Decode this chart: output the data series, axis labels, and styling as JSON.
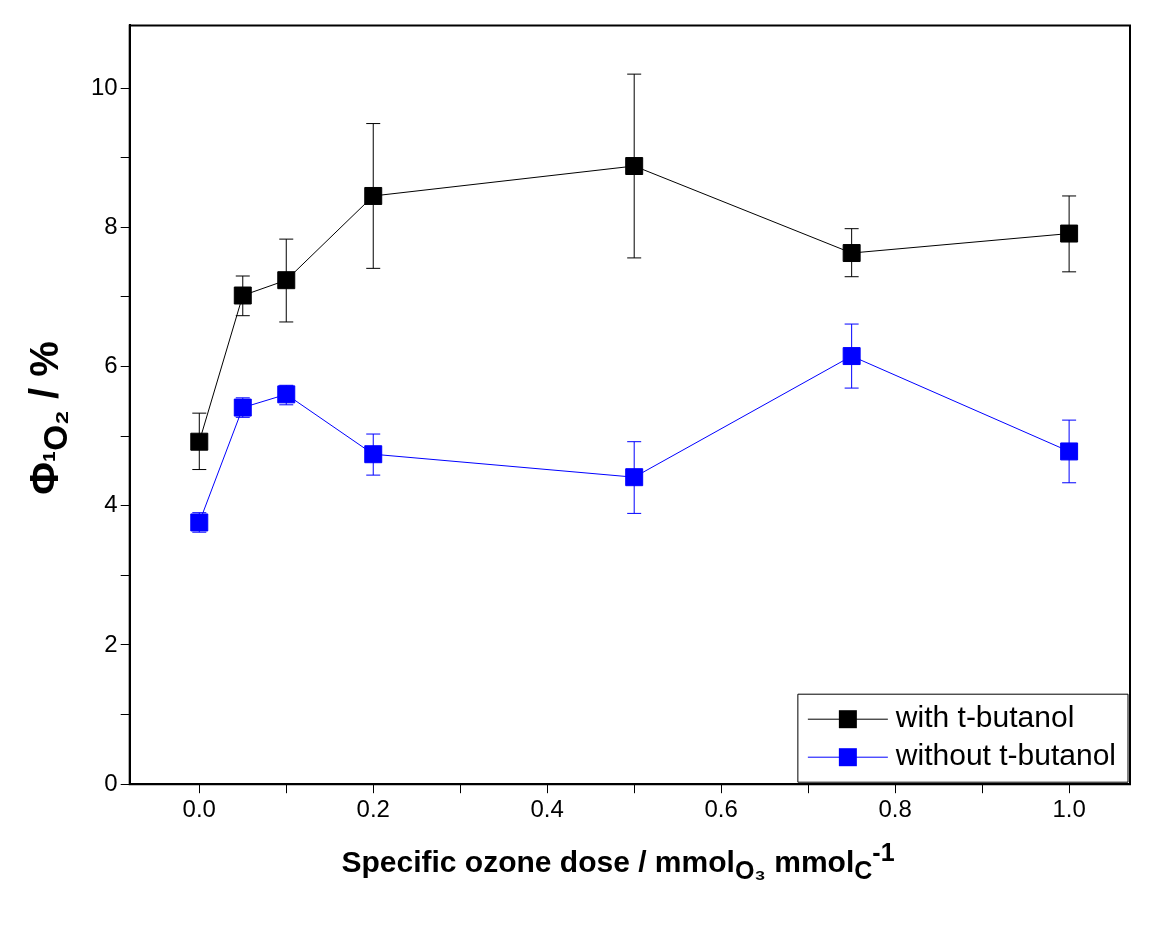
{
  "chart_data": {
    "type": "line",
    "xlabel": "Specific ozone dose / mmol$_{O₃}$ mmol$_{C}$$^{-1}$",
    "ylabel": "Φ$_{¹O₂}$ / %",
    "xlim": [
      -0.08,
      1.07
    ],
    "ylim": [
      0,
      10.9
    ],
    "xticks": [
      {
        "value": 0,
        "label": "0.0"
      },
      {
        "value": 0.1,
        "label": null
      },
      {
        "value": 0.2,
        "label": "0.2"
      },
      {
        "value": 0.3,
        "label": null
      },
      {
        "value": 0.4,
        "label": "0.4"
      },
      {
        "value": 0.5,
        "label": null
      },
      {
        "value": 0.6,
        "label": "0.6"
      },
      {
        "value": 0.7,
        "label": null
      },
      {
        "value": 0.8,
        "label": "0.8"
      },
      {
        "value": 0.9,
        "label": null
      },
      {
        "value": 1,
        "label": "1.0"
      }
    ],
    "yticks": [
      0,
      {
        "value": 1,
        "label": null
      },
      2,
      {
        "value": 3,
        "label": null
      },
      4,
      {
        "value": 5,
        "label": null
      },
      6,
      {
        "value": 7,
        "label": null
      },
      8,
      {
        "value": 9,
        "label": null
      },
      10
    ],
    "marker": "square",
    "line_style": "solid",
    "legend": "bottom right",
    "series": [
      {
        "name": "with t-butanol",
        "color": "#000000",
        "x": [
          0,
          0.05,
          0.1,
          0.2,
          0.5,
          0.75,
          1
        ],
        "values": [
          4.92,
          7.02,
          7.24,
          8.45,
          8.88,
          7.63,
          7.91
        ],
        "errors": [
          [
            4.52,
            5.33
          ],
          [
            6.73,
            7.3
          ],
          [
            6.64,
            7.83
          ],
          [
            7.41,
            9.49
          ],
          [
            7.56,
            10.2
          ],
          [
            7.29,
            7.98
          ],
          [
            7.36,
            8.45
          ]
        ]
      },
      {
        "name": "without t-butanol",
        "color": "#0000ff",
        "x": [
          0,
          0.05,
          0.1,
          0.2,
          0.5,
          0.75,
          1
        ],
        "values": [
          3.76,
          5.41,
          5.6,
          4.74,
          4.41,
          6.15,
          4.78
        ],
        "errors": [
          [
            3.62,
            3.9
          ],
          [
            5.27,
            5.55
          ],
          [
            5.45,
            5.73
          ],
          [
            4.44,
            5.03
          ],
          [
            3.89,
            4.92
          ],
          [
            5.69,
            6.61
          ],
          [
            4.33,
            5.23
          ]
        ]
      }
    ]
  }
}
